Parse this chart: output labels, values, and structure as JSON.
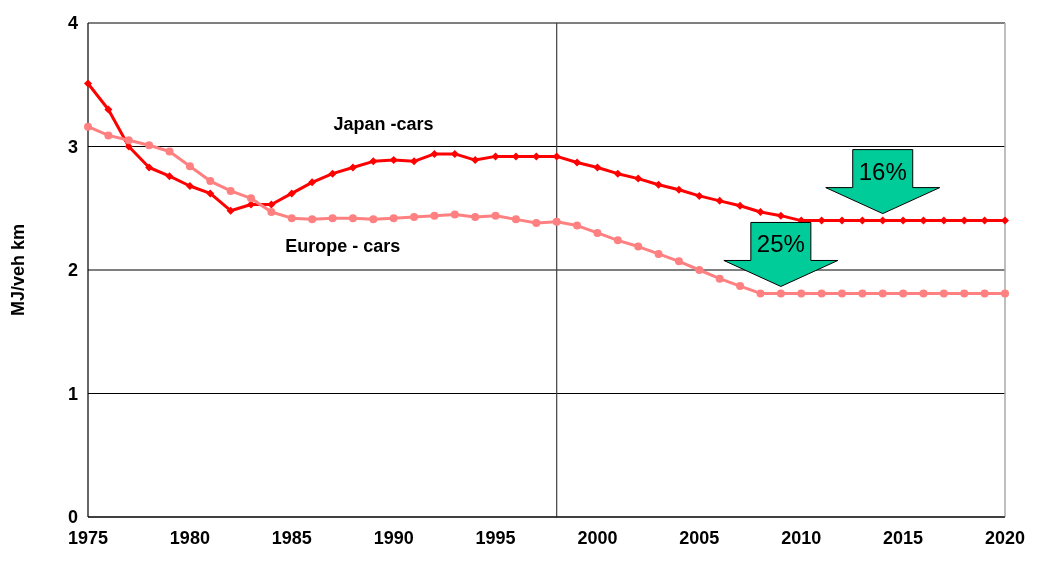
{
  "chart_data": {
    "type": "line",
    "ylabel": "MJ/veh km",
    "x": [
      1975,
      1976,
      1977,
      1978,
      1979,
      1980,
      1981,
      1982,
      1983,
      1984,
      1985,
      1986,
      1987,
      1988,
      1989,
      1990,
      1991,
      1992,
      1993,
      1994,
      1995,
      1996,
      1997,
      1998,
      1999,
      2000,
      2001,
      2002,
      2003,
      2004,
      2005,
      2006,
      2007,
      2008,
      2009,
      2010,
      2011,
      2012,
      2013,
      2014,
      2015,
      2016,
      2017,
      2018,
      2019,
      2020
    ],
    "series": [
      {
        "name": "Japan -cars",
        "color": "#ff0000",
        "marker": "diamond",
        "values": [
          3.51,
          3.3,
          3.0,
          2.83,
          2.76,
          2.68,
          2.62,
          2.48,
          2.53,
          2.53,
          2.62,
          2.71,
          2.78,
          2.83,
          2.88,
          2.89,
          2.88,
          2.94,
          2.94,
          2.89,
          2.92,
          2.92,
          2.92,
          2.92,
          2.87,
          2.83,
          2.78,
          2.74,
          2.69,
          2.65,
          2.6,
          2.56,
          2.52,
          2.47,
          2.44,
          2.4,
          2.4,
          2.4,
          2.4,
          2.4,
          2.4,
          2.4,
          2.4,
          2.4,
          2.4,
          2.4
        ]
      },
      {
        "name": "Europe - cars",
        "color": "#ff8080",
        "marker": "circle",
        "values": [
          3.16,
          3.09,
          3.05,
          3.01,
          2.96,
          2.84,
          2.72,
          2.64,
          2.58,
          2.47,
          2.42,
          2.41,
          2.42,
          2.42,
          2.41,
          2.42,
          2.43,
          2.44,
          2.45,
          2.43,
          2.44,
          2.41,
          2.38,
          2.39,
          2.36,
          2.3,
          2.24,
          2.19,
          2.13,
          2.07,
          2.0,
          1.93,
          1.87,
          1.81,
          1.81,
          1.81,
          1.81,
          1.81,
          1.81,
          1.81,
          1.81,
          1.81,
          1.81,
          1.81,
          1.81,
          1.81
        ]
      }
    ],
    "xlim": [
      1975,
      2020
    ],
    "xticks": [
      1975,
      1980,
      1985,
      1990,
      1995,
      2000,
      2005,
      2010,
      2015,
      2020
    ],
    "ylim": [
      0,
      4
    ],
    "yticks": [
      0,
      1,
      2,
      3,
      4
    ],
    "grid": "y",
    "ref_lines": [
      {
        "axis": "x",
        "value": 1998,
        "color": "#404040"
      }
    ],
    "annotations": [
      {
        "text": "16%",
        "x": 2014,
        "y": 2.4
      },
      {
        "text": "25%",
        "x": 2009,
        "y": 1.81
      }
    ]
  }
}
